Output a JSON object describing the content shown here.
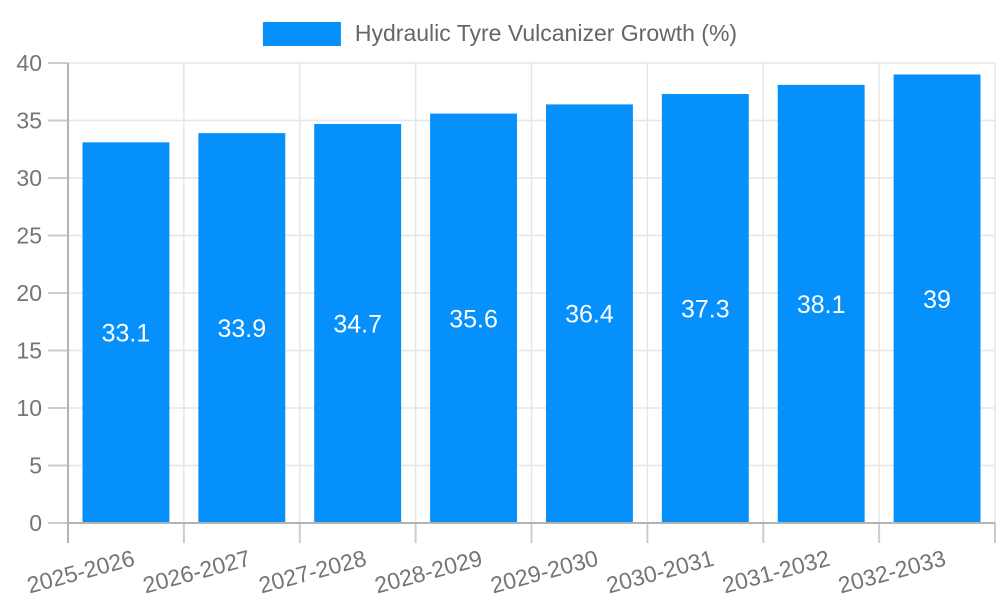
{
  "chart_data": {
    "type": "bar",
    "title": "Hydraulic Tyre Vulcanizer Growth (%)",
    "legend": "Hydraulic Tyre Vulcanizer Growth (%)",
    "categories": [
      "2025-2026",
      "2026-2027",
      "2027-2028",
      "2028-2029",
      "2029-2030",
      "2030-2031",
      "2031-2032",
      "2032-2033"
    ],
    "series": [
      {
        "name": "Hydraulic Tyre Vulcanizer Growth (%)",
        "values": [
          33.1,
          33.9,
          34.7,
          35.6,
          36.4,
          37.3,
          38.1,
          39
        ]
      }
    ],
    "xlabel": "",
    "ylabel": "",
    "ylim": [
      0,
      40
    ],
    "ytick_step": 5,
    "yticks": [
      0,
      5,
      10,
      15,
      20,
      25,
      30,
      35,
      40
    ],
    "grid": true,
    "legend_position": "top",
    "xlabel_rotation_deg": -15,
    "colors": {
      "bar": "#0590fb",
      "grid": "#e6e6e6",
      "axis": "#b3b3b3",
      "tick": "#cccccc",
      "tick_label": "#757575",
      "value_label": "#ffffff",
      "legend_text": "#666666",
      "background": "#ffffff"
    }
  }
}
